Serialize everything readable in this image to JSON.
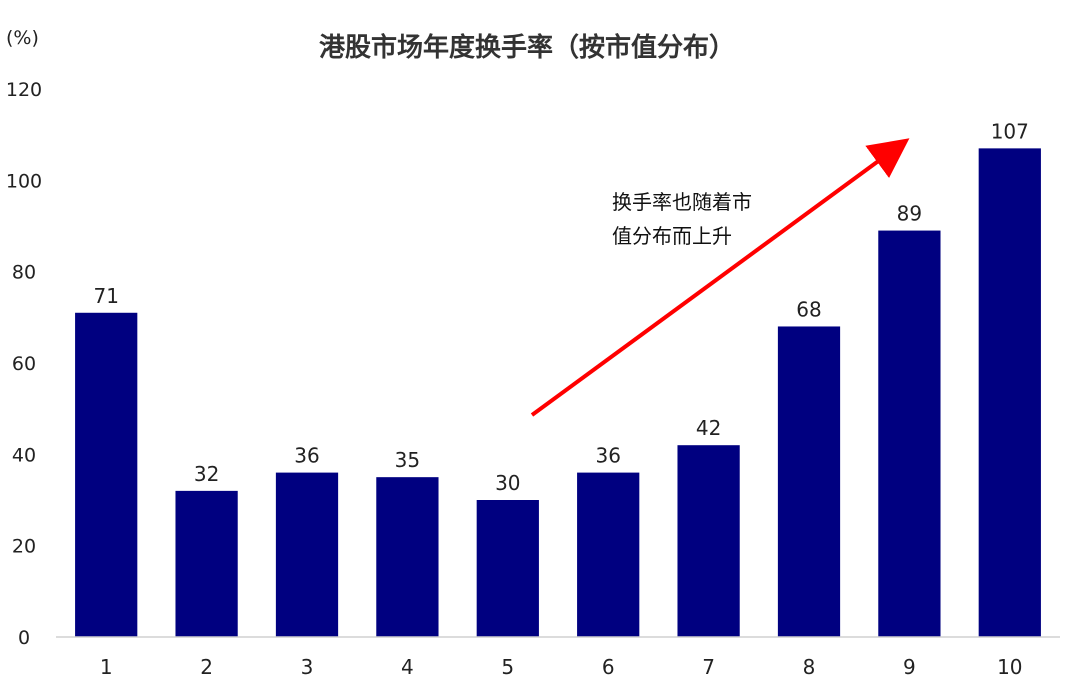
{
  "chart_data": {
    "type": "bar",
    "title": "港股市场年度换手率（按市值分布）",
    "y_unit": "(%)",
    "categories": [
      "1",
      "2",
      "3",
      "4",
      "5",
      "6",
      "7",
      "8",
      "9",
      "10"
    ],
    "values": [
      71,
      32,
      36,
      35,
      30,
      36,
      42,
      68,
      89,
      107
    ],
    "ylim": [
      0,
      120
    ],
    "yticks": [
      0,
      20,
      40,
      60,
      80,
      100,
      120
    ],
    "grid": false,
    "bar_color": "#000080",
    "annotation": {
      "lines": [
        "换手率也随着市",
        "值分布而上升"
      ],
      "arrow_color": "#ff0000"
    }
  }
}
